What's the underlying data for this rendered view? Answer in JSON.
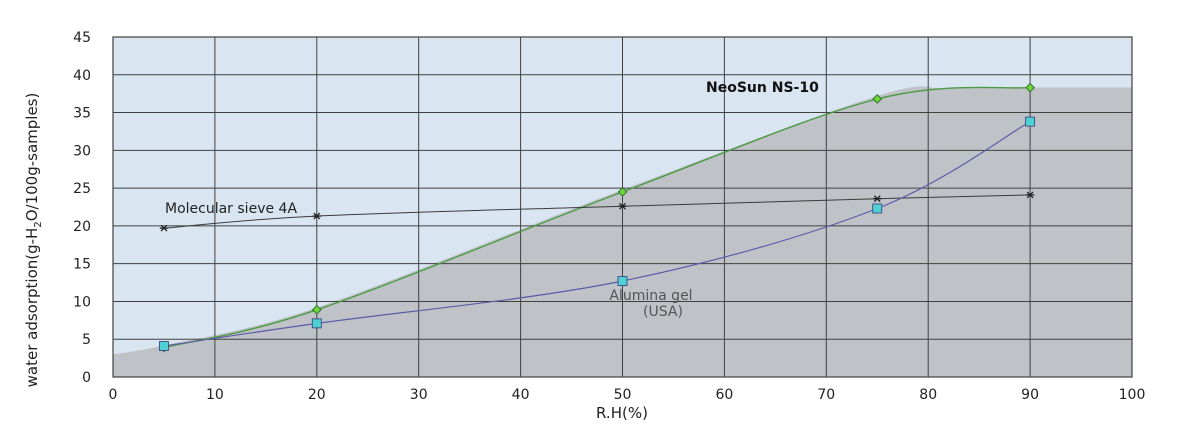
{
  "chart_data": {
    "type": "line",
    "xlabel": "R.H(%)",
    "ylabel": "water adsorption(g-H2O/100g-samples)",
    "ylabel_parts": {
      "pre": "water adsorption(g-H",
      "sub": "2",
      "post": "O/100g-samples)"
    },
    "xlim": [
      0,
      100
    ],
    "ylim": [
      0,
      45
    ],
    "xticks": [
      0,
      10,
      20,
      30,
      40,
      50,
      60,
      70,
      80,
      90,
      100
    ],
    "yticks": [
      0,
      5,
      10,
      15,
      20,
      25,
      30,
      35,
      40,
      45
    ],
    "grid": true,
    "colors": {
      "plot_background": "#d9e5f1",
      "area_fill": "#bfc3c8",
      "gridline": "#404040",
      "neosun_line": "#4d9a45",
      "neosun_marker": "#6ad63c",
      "molecular_line": "#3a3a3a",
      "alumina_line": "#5a5ca8",
      "alumina_marker": "#4fd1d1"
    },
    "area_series": {
      "x": [
        0,
        5,
        20,
        50,
        75,
        82,
        90,
        100
      ],
      "values": [
        3.0,
        4.2,
        9.2,
        24.8,
        37.2,
        38.2,
        38.3,
        38.3
      ]
    },
    "series": [
      {
        "name": "NeoSun NS-10",
        "x": [
          5,
          20,
          50,
          75,
          90
        ],
        "values": [
          3.9,
          8.9,
          24.5,
          36.8,
          38.3
        ],
        "marker": "diamond"
      },
      {
        "name": "Molecular sieve 4A",
        "x": [
          5,
          20,
          50,
          75,
          90
        ],
        "values": [
          19.7,
          21.3,
          22.6,
          23.6,
          24.1
        ],
        "marker": "star"
      },
      {
        "name": "Alumina gel (USA)",
        "name_lines": [
          "Alumina gel",
          "(USA)"
        ],
        "x": [
          5,
          20,
          50,
          75,
          90
        ],
        "values": [
          4.1,
          7.1,
          12.7,
          22.3,
          33.8
        ],
        "marker": "square"
      }
    ]
  }
}
